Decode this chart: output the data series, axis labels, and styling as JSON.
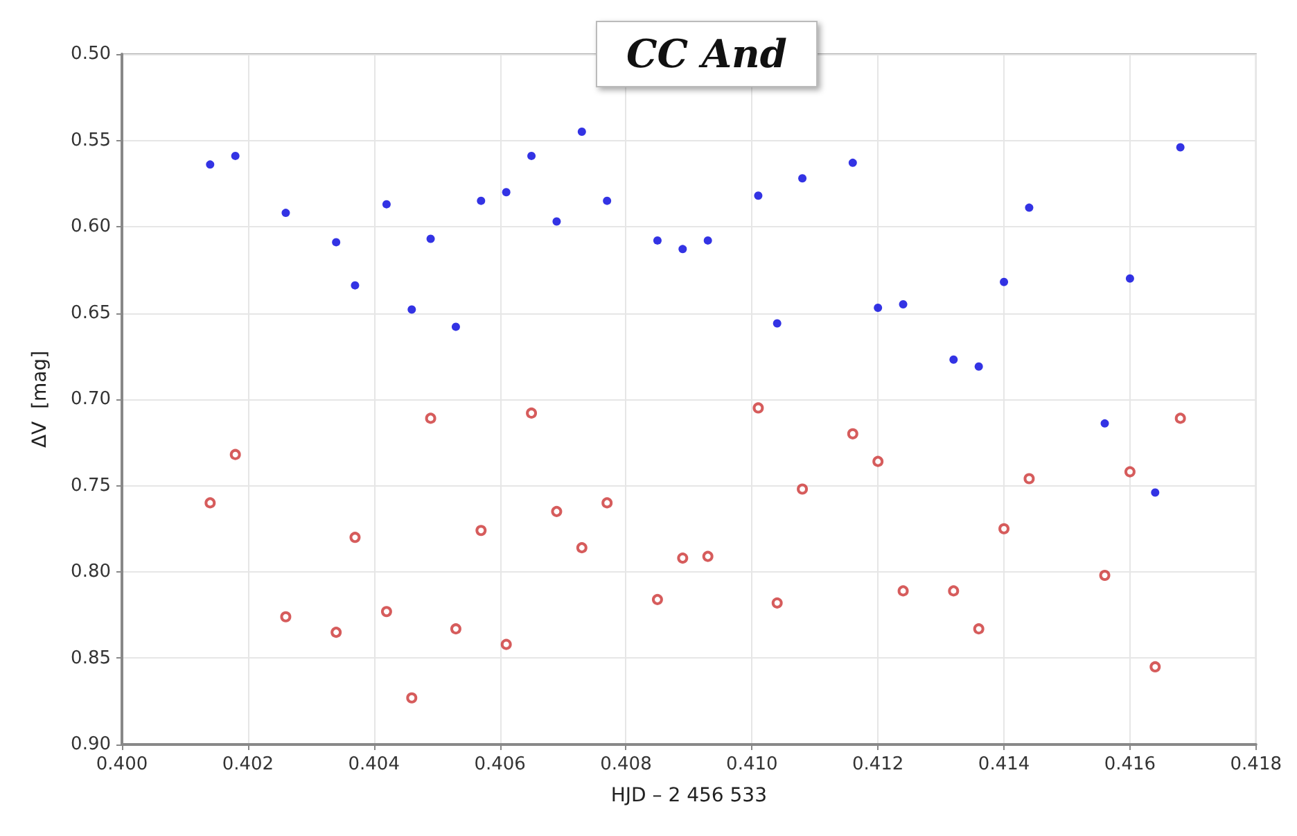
{
  "chart_data": {
    "type": "scatter",
    "title": "CC And",
    "xlabel": "HJD – 2 456 533",
    "ylabel": "ΔV  [mag]",
    "xlim": [
      0.4,
      0.418
    ],
    "ylim": [
      0.9,
      0.5
    ],
    "xticks": [
      {
        "value": 0.4,
        "label": "0.400"
      },
      {
        "value": 0.402,
        "label": "0.402"
      },
      {
        "value": 0.404,
        "label": "0.404"
      },
      {
        "value": 0.406,
        "label": "0.406"
      },
      {
        "value": 0.408,
        "label": "0.408"
      },
      {
        "value": 0.41,
        "label": "0.410"
      },
      {
        "value": 0.412,
        "label": "0.412"
      },
      {
        "value": 0.414,
        "label": "0.414"
      },
      {
        "value": 0.416,
        "label": "0.416"
      },
      {
        "value": 0.418,
        "label": "0.418"
      }
    ],
    "yticks": [
      {
        "value": 0.5,
        "label": "0.50"
      },
      {
        "value": 0.55,
        "label": "0.55"
      },
      {
        "value": 0.6,
        "label": "0.60"
      },
      {
        "value": 0.65,
        "label": "0.65"
      },
      {
        "value": 0.7,
        "label": "0.70"
      },
      {
        "value": 0.75,
        "label": "0.75"
      },
      {
        "value": 0.8,
        "label": "0.80"
      },
      {
        "value": 0.85,
        "label": "0.85"
      },
      {
        "value": 0.9,
        "label": "0.90"
      }
    ],
    "grid": true,
    "marker": "circle",
    "series": [
      {
        "color": "#0000dd",
        "x": [
          0.4014,
          0.4018,
          0.4026,
          0.4034,
          0.4037,
          0.4042,
          0.4046,
          0.4049,
          0.4053,
          0.4057,
          0.4061,
          0.4065,
          0.4069,
          0.4073,
          0.4077,
          0.4085,
          0.4089,
          0.4093,
          0.4101,
          0.4104,
          0.4108,
          0.4116,
          0.412,
          0.4124,
          0.4132,
          0.4136,
          0.414,
          0.4144,
          0.4156,
          0.416,
          0.4164,
          0.4168
        ],
        "values": [
          0.564,
          0.559,
          0.592,
          0.609,
          0.634,
          0.587,
          0.648,
          0.607,
          0.658,
          0.585,
          0.58,
          0.559,
          0.597,
          0.545,
          0.585,
          0.608,
          0.613,
          0.608,
          0.582,
          0.656,
          0.572,
          0.563,
          0.647,
          0.645,
          0.677,
          0.681,
          0.632,
          0.589,
          0.714,
          0.63,
          0.754,
          0.554
        ]
      },
      {
        "color": "#cc3333",
        "x": [
          0.4014,
          0.4018,
          0.4026,
          0.4034,
          0.4037,
          0.4042,
          0.4046,
          0.4049,
          0.4053,
          0.4057,
          0.4061,
          0.4065,
          0.4069,
          0.4073,
          0.4077,
          0.4085,
          0.4089,
          0.4093,
          0.4101,
          0.4104,
          0.4108,
          0.4116,
          0.412,
          0.4124,
          0.4132,
          0.4136,
          0.414,
          0.4144,
          0.4156,
          0.416,
          0.4164,
          0.4168
        ],
        "values": [
          0.76,
          0.732,
          0.826,
          0.835,
          0.78,
          0.823,
          0.873,
          0.711,
          0.833,
          0.776,
          0.842,
          0.708,
          0.765,
          0.786,
          0.76,
          0.816,
          0.792,
          0.791,
          0.705,
          0.818,
          0.752,
          0.72,
          0.736,
          0.811,
          0.811,
          0.833,
          0.775,
          0.746,
          0.802,
          0.742,
          0.855,
          0.711
        ]
      }
    ]
  }
}
